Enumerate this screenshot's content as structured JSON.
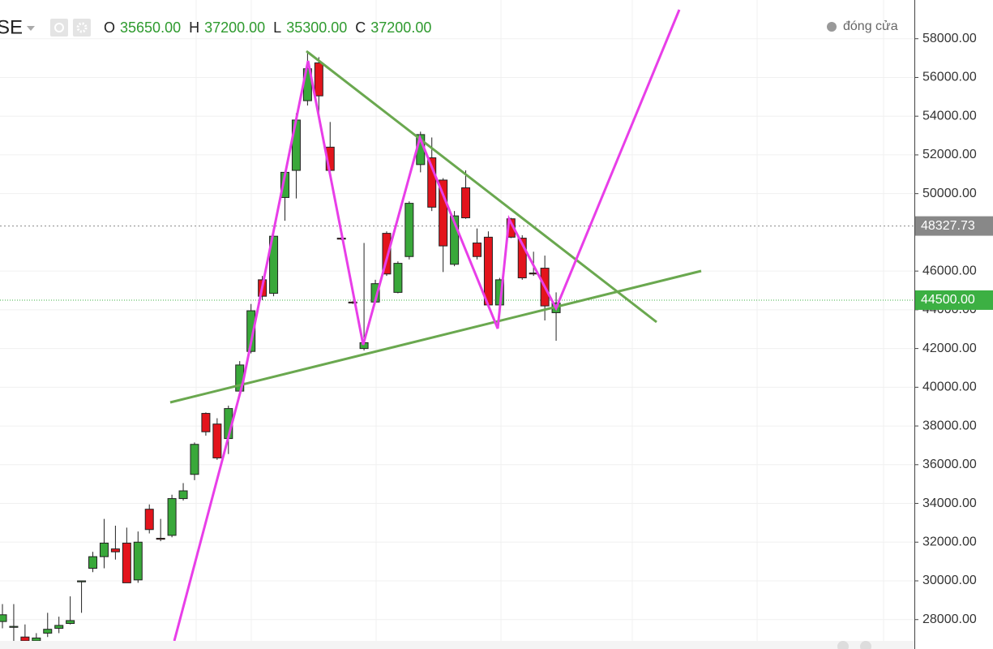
{
  "chart_data": {
    "type": "candlestick",
    "symbol": "SE",
    "ohlc_legend": [
      {
        "key": "O",
        "text": "35650.00"
      },
      {
        "key": "H",
        "text": "37200.00"
      },
      {
        "key": "L",
        "text": "35300.00"
      },
      {
        "key": "C",
        "text": "37200.00"
      }
    ],
    "series_name": "đóng cửa",
    "up_color": "#39a83a",
    "down_color": "#e3141c",
    "ylim": [
      26900,
      60000
    ],
    "yticks": [
      {
        "value": 28000,
        "label": "28000.00"
      },
      {
        "value": 30000,
        "label": "30000.00"
      },
      {
        "value": 32000,
        "label": "32000.00"
      },
      {
        "value": 34000,
        "label": "34000.00"
      },
      {
        "value": 36000,
        "label": "36000.00"
      },
      {
        "value": 38000,
        "label": "38000.00"
      },
      {
        "value": 40000,
        "label": "40000.00"
      },
      {
        "value": 42000,
        "label": "42000.00"
      },
      {
        "value": 44000,
        "label": "44000.00"
      },
      {
        "value": 46000,
        "label": "46000.00"
      },
      {
        "value": 50000,
        "label": "50000.00"
      },
      {
        "value": 52000,
        "label": "52000.00"
      },
      {
        "value": 54000,
        "label": "54000.00"
      },
      {
        "value": 56000,
        "label": "56000.00"
      },
      {
        "value": 58000,
        "label": "58000.00"
      }
    ],
    "grid": true,
    "last_price": {
      "value": 48327.73,
      "label": "48327.73",
      "color": "#888888"
    },
    "crosshair_price": {
      "value": 44500,
      "label": "44500.00",
      "color": "#3cb043"
    },
    "open": [
      27900,
      27600,
      27100,
      26900,
      27300,
      27550,
      27800,
      29950,
      30650,
      31250,
      31650,
      31950,
      30050,
      33700,
      32200,
      32350,
      34250,
      35500,
      38650,
      38100,
      37350,
      39800,
      41850,
      45550,
      44850,
      49800,
      51200,
      54800,
      56750,
      52400,
      47700,
      44400,
      42000,
      44400,
      47950,
      44900,
      46750,
      51500,
      51850,
      50700,
      46350,
      50300,
      47450,
      47750,
      44250,
      48700,
      47700,
      45900,
      46150,
      43850
    ],
    "high": [
      28800,
      28800,
      27750,
      27300,
      28350,
      28150,
      29200,
      30000,
      31500,
      33200,
      32850,
      32750,
      32550,
      33950,
      33200,
      34450,
      35050,
      37150,
      38700,
      38400,
      39050,
      41350,
      44300,
      45750,
      47950,
      51200,
      54150,
      57300,
      57050,
      53700,
      47750,
      44450,
      47450,
      45550,
      48050,
      46500,
      49600,
      53200,
      52900,
      50800,
      49100,
      51200,
      48200,
      48050,
      45650,
      48750,
      47850,
      47000,
      46800,
      44900
    ],
    "low": [
      27550,
      26900,
      26900,
      26900,
      27100,
      27300,
      27750,
      28350,
      30450,
      30650,
      31100,
      29900,
      29900,
      32450,
      32050,
      32250,
      34150,
      35200,
      37500,
      36250,
      36550,
      39700,
      41750,
      44500,
      44700,
      48600,
      49750,
      54550,
      53800,
      51100,
      47600,
      44300,
      41900,
      44350,
      45750,
      44850,
      46600,
      51100,
      49100,
      45950,
      46250,
      48700,
      46600,
      44100,
      44150,
      47700,
      45550,
      45750,
      43450,
      42400
    ],
    "close": [
      28250,
      27650,
      26900,
      27050,
      27500,
      27700,
      27950,
      30000,
      31250,
      31950,
      31500,
      29900,
      32000,
      32650,
      32150,
      34250,
      34650,
      37050,
      37700,
      36350,
      38900,
      41150,
      43950,
      44700,
      47800,
      51100,
      53800,
      56450,
      55050,
      51200,
      47650,
      44350,
      42300,
      45350,
      45850,
      46400,
      49500,
      53050,
      49300,
      47300,
      48850,
      48750,
      46750,
      44250,
      45550,
      47750,
      45650,
      45850,
      44200,
      44350
    ]
  }
}
